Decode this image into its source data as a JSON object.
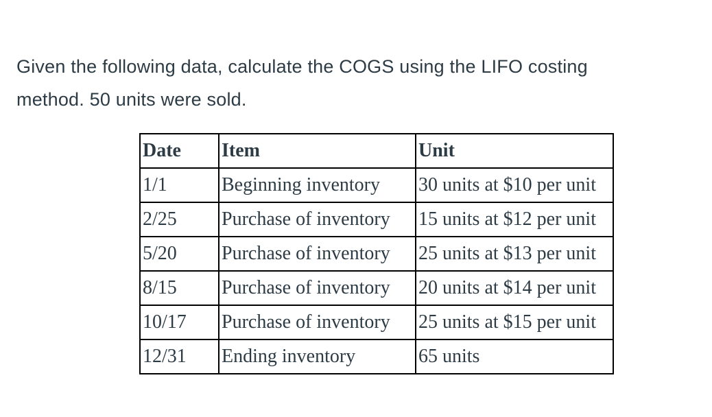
{
  "question": {
    "lines": [
      "Given the following data, calculate the COGS using the LIFO costing",
      "method. 50 units were sold."
    ]
  },
  "table": {
    "headers": [
      "Date",
      "Item",
      "Unit"
    ],
    "rows": [
      [
        "1/1",
        "Beginning inventory",
        "30 units at $10 per unit"
      ],
      [
        "2/25",
        "Purchase of inventory",
        "15 units at $12 per unit"
      ],
      [
        "5/20",
        "Purchase of inventory",
        "25 units at $13 per unit"
      ],
      [
        "8/15",
        "Purchase of inventory",
        "20 units at $14 per unit"
      ],
      [
        "10/17",
        "Purchase of inventory",
        "25 units at $15 per unit"
      ],
      [
        "12/31",
        "Ending inventory",
        "65 units"
      ]
    ]
  },
  "colors": {
    "text": "#2d3b45",
    "table_border": "#000000",
    "background": "#ffffff"
  }
}
